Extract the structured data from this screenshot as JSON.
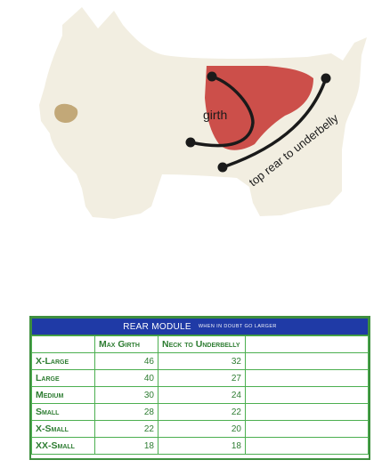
{
  "illustration": {
    "labels": {
      "girth": "girth",
      "top_rear_to_underbelly": "top rear to underbelly"
    },
    "colors": {
      "dog_body": "#f2eee1",
      "nose": "#c2a878",
      "harness": "#cc4f4a",
      "measure_line": "#1a1a1a"
    }
  },
  "size_table": {
    "title": "REAR MODULE",
    "note": "when in doubt go larger",
    "columns": [
      "",
      "Max Girth",
      "Neck to Underbelly",
      ""
    ],
    "rows": [
      {
        "size": "X-Large",
        "max_girth": "46",
        "neck_to_underbelly": "32"
      },
      {
        "size": "Large",
        "max_girth": "40",
        "neck_to_underbelly": "27"
      },
      {
        "size": "Medium",
        "max_girth": "30",
        "neck_to_underbelly": "24"
      },
      {
        "size": "Small",
        "max_girth": "28",
        "neck_to_underbelly": "22"
      },
      {
        "size": "X-Small",
        "max_girth": "22",
        "neck_to_underbelly": "20"
      },
      {
        "size": "XX-Small",
        "max_girth": "18",
        "neck_to_underbelly": "18"
      }
    ],
    "colors": {
      "header_bg": "#1f3aa6",
      "header_text": "#ffffff",
      "grid": "#4caf50",
      "text": "#2e7d32"
    }
  }
}
